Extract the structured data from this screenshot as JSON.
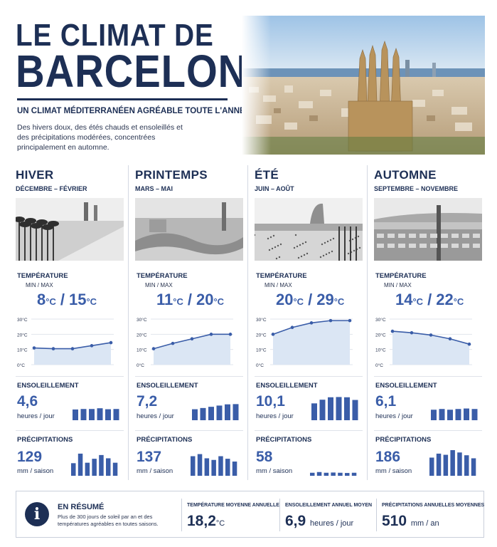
{
  "header": {
    "title_line1": "LE CLIMAT DE",
    "title_line2": "BARCELONE",
    "subtitle": "UN CLIMAT MÉDITERRANÉEN AGRÉABLE TOUTE L'ANNÉE",
    "intro": "Des hivers doux, des étés chauds et ensoleillés et des précipitations modérées, concentrées principalement en automne."
  },
  "labels": {
    "temperature": "TEMPÉRATURE",
    "minmax": "MIN / MAX",
    "sunshine": "ENSOLEILLEMENT",
    "sunshine_unit": "heures / jour",
    "rain": "PRÉCIPITATIONS",
    "rain_unit": "mm / saison",
    "temp_sep": "/",
    "deg_unit": "°C",
    "axis_ticks": [
      "30°C",
      "20°C",
      "10°C",
      "0°C"
    ]
  },
  "seasons": [
    {
      "name": "HIVER",
      "months": "DÉCEMBRE – FÉVRIER",
      "tmin": "8",
      "tmax": "15",
      "temp_curve": [
        11,
        10.5,
        10.5,
        12.5,
        14.5
      ],
      "sunshine": "4,6",
      "sun_bars": [
        4.4,
        4.6,
        4.6,
        4.9,
        4.5,
        4.6
      ],
      "rain": "129",
      "rain_bars": [
        5.4,
        9.5,
        5.6,
        7.3,
        8.9,
        7.5,
        5.6
      ]
    },
    {
      "name": "PRINTEMPS",
      "months": "MARS – MAI",
      "tmin": "11",
      "tmax": "20",
      "temp_curve": [
        10.5,
        14,
        17,
        20,
        20
      ],
      "sunshine": "7,2",
      "sun_bars": [
        4.5,
        5,
        5.5,
        6,
        6.5,
        6.6
      ],
      "rain": "137",
      "rain_bars": [
        8.4,
        9.3,
        7.5,
        6.8,
        8.4,
        7.3,
        6.1
      ]
    },
    {
      "name": "ÉTÉ",
      "months": "JUIN – AOÛT",
      "tmin": "20",
      "tmax": "29",
      "temp_curve": [
        20,
        24.5,
        27.5,
        29,
        29
      ],
      "sunshine": "10,1",
      "sun_bars": [
        6.9,
        8.4,
        9.4,
        9.5,
        9.4,
        8.3
      ],
      "rain": "58",
      "rain_bars": [
        1.3,
        1.6,
        1.3,
        1.4,
        1.3,
        1.2,
        1.3
      ]
    },
    {
      "name": "AUTOMNE",
      "months": "SEPTEMBRE – NOVEMBRE",
      "tmin": "14",
      "tmax": "22",
      "temp_curve": [
        22,
        21,
        19.5,
        17,
        13.5
      ],
      "sunshine": "6,1",
      "sun_bars": [
        4.3,
        4.6,
        4.3,
        4.6,
        4.8,
        4.6
      ],
      "rain": "186",
      "rain_bars": [
        7.8,
        9.5,
        9,
        11,
        10,
        8.8,
        7.5
      ]
    }
  ],
  "summary": {
    "title": "EN RÉSUMÉ",
    "text": "Plus de 300 jours de soleil par an et des températures agréables en toutes saisons.",
    "items": [
      {
        "label": "TEMPÉRATURE MOYENNE ANNUELLE",
        "value": "18,2",
        "unit": "°C"
      },
      {
        "label": "ENSOLEILLEMENT ANNUEL MOYEN",
        "value": "6,9",
        "unit": "heures / jour"
      },
      {
        "label": "PRÉCIPITATIONS ANNUELLES MOYENNES",
        "value": "510",
        "unit": "mm / an"
      }
    ]
  },
  "colors": {
    "navy": "#1d2f55",
    "accent": "#3a5da8",
    "area": "#dbe6f4"
  }
}
